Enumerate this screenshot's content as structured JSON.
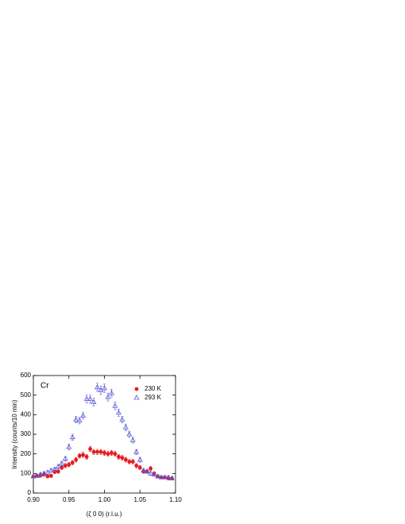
{
  "chart_data": {
    "type": "scatter",
    "annotation": "Cr",
    "xlabel": "(ζ 0 0)  (r.l.u.)",
    "ylabel": "Intensity (counts/10 min)",
    "xlim": [
      0.9,
      1.1
    ],
    "ylim": [
      0,
      600
    ],
    "xticks": [
      {
        "value": 0.9,
        "label": "0.90"
      },
      {
        "value": 0.95,
        "label": "0.95"
      },
      {
        "value": 1.0,
        "label": "1.00"
      },
      {
        "value": 1.05,
        "label": "1.05"
      },
      {
        "value": 1.1,
        "label": "1.10"
      }
    ],
    "yticks": [
      0,
      100,
      200,
      300,
      400,
      500,
      600
    ],
    "legend": "upper right",
    "x": [
      0.9,
      0.905,
      0.91,
      0.915,
      0.92,
      0.925,
      0.93,
      0.935,
      0.94,
      0.945,
      0.95,
      0.955,
      0.96,
      0.965,
      0.97,
      0.975,
      0.98,
      0.985,
      0.99,
      0.995,
      1.0,
      1.005,
      1.01,
      1.015,
      1.02,
      1.025,
      1.03,
      1.035,
      1.04,
      1.045,
      1.05,
      1.055,
      1.06,
      1.065,
      1.07,
      1.075,
      1.08,
      1.085,
      1.09,
      1.095
    ],
    "series": [
      {
        "name": "230 K",
        "color": "#e41a1c",
        "marker": "circle",
        "values": [
          85,
          88,
          90,
          95,
          85,
          88,
          108,
          110,
          130,
          140,
          145,
          155,
          170,
          190,
          195,
          185,
          225,
          210,
          210,
          210,
          205,
          200,
          205,
          200,
          185,
          180,
          170,
          160,
          160,
          140,
          130,
          110,
          110,
          125,
          100,
          85,
          80,
          80,
          75,
          75
        ],
        "errors": [
          8,
          8,
          9,
          9,
          8,
          8,
          9,
          9,
          10,
          11,
          11,
          11,
          12,
          12,
          13,
          12,
          13,
          13,
          13,
          13,
          13,
          13,
          13,
          13,
          12,
          12,
          12,
          11,
          11,
          11,
          10,
          9,
          9,
          10,
          9,
          8,
          8,
          8,
          8,
          8
        ]
      },
      {
        "name": "293 K",
        "color": "#5b5bd6",
        "marker": "triangle",
        "values": [
          85,
          88,
          95,
          100,
          105,
          115,
          120,
          135,
          150,
          175,
          235,
          285,
          375,
          370,
          395,
          480,
          480,
          465,
          540,
          525,
          535,
          490,
          510,
          445,
          410,
          375,
          335,
          300,
          270,
          210,
          170,
          115,
          110,
          100,
          95,
          85,
          80,
          80,
          80,
          75
        ],
        "errors": [
          8,
          8,
          9,
          9,
          9,
          10,
          10,
          11,
          11,
          12,
          14,
          15,
          17,
          17,
          18,
          20,
          20,
          20,
          21,
          21,
          21,
          20,
          20,
          19,
          18,
          17,
          17,
          16,
          15,
          13,
          12,
          10,
          9,
          9,
          9,
          8,
          8,
          8,
          8,
          8
        ]
      }
    ]
  }
}
